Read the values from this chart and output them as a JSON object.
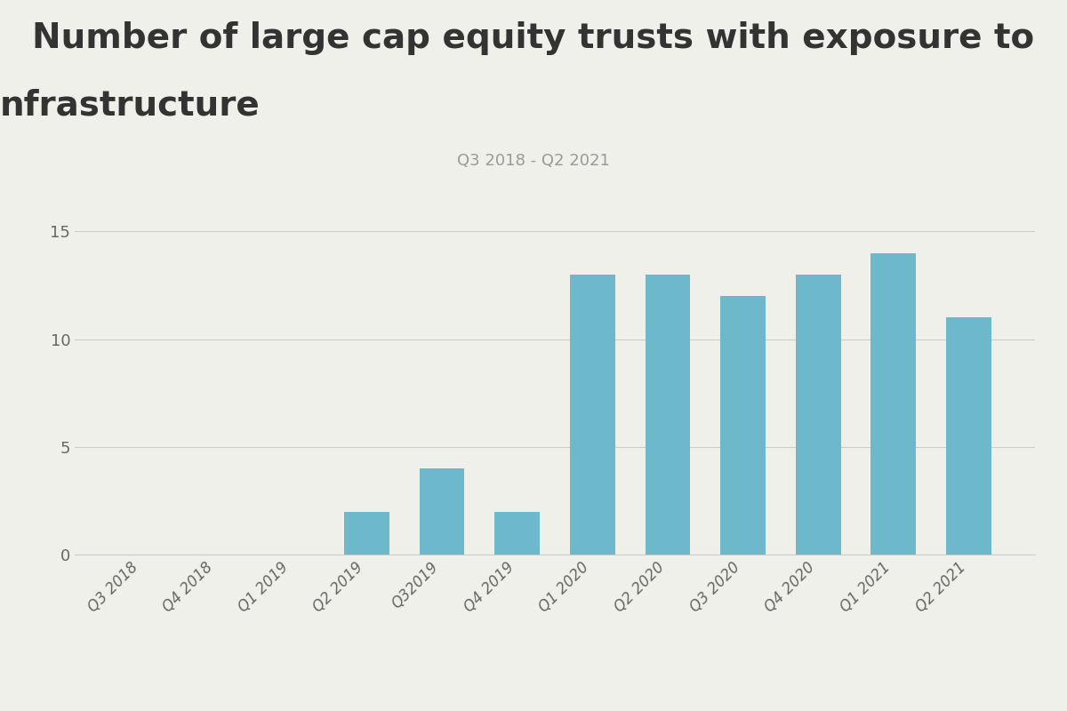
{
  "title_line1": "Number of large cap equity trusts with exposure to",
  "title_line2": "nfrastructure",
  "subtitle": "Q3 2018 - Q2 2021",
  "categories": [
    "Q3 2018",
    "Q4 2018",
    "Q1 2019",
    "Q2 2019",
    "Q32019",
    "Q4 2019",
    "Q1 2020",
    "Q2 2020",
    "Q3 2020",
    "Q4 2020",
    "Q1 2021",
    "Q2 2021"
  ],
  "values": [
    0,
    0,
    0,
    2,
    4,
    2,
    13,
    13,
    12,
    13,
    14,
    11
  ],
  "bar_color": "#6DB8CB",
  "background_color": "#f0f0eb",
  "yticks": [
    0,
    5,
    10,
    15
  ],
  "ylim": [
    0,
    16.5
  ],
  "grid_color": "#cccccc",
  "title_fontsize": 28,
  "subtitle_fontsize": 13,
  "tick_fontsize": 13,
  "xtick_fontsize": 12,
  "title_color": "#333333",
  "subtitle_color": "#999999",
  "tick_color": "#666666"
}
